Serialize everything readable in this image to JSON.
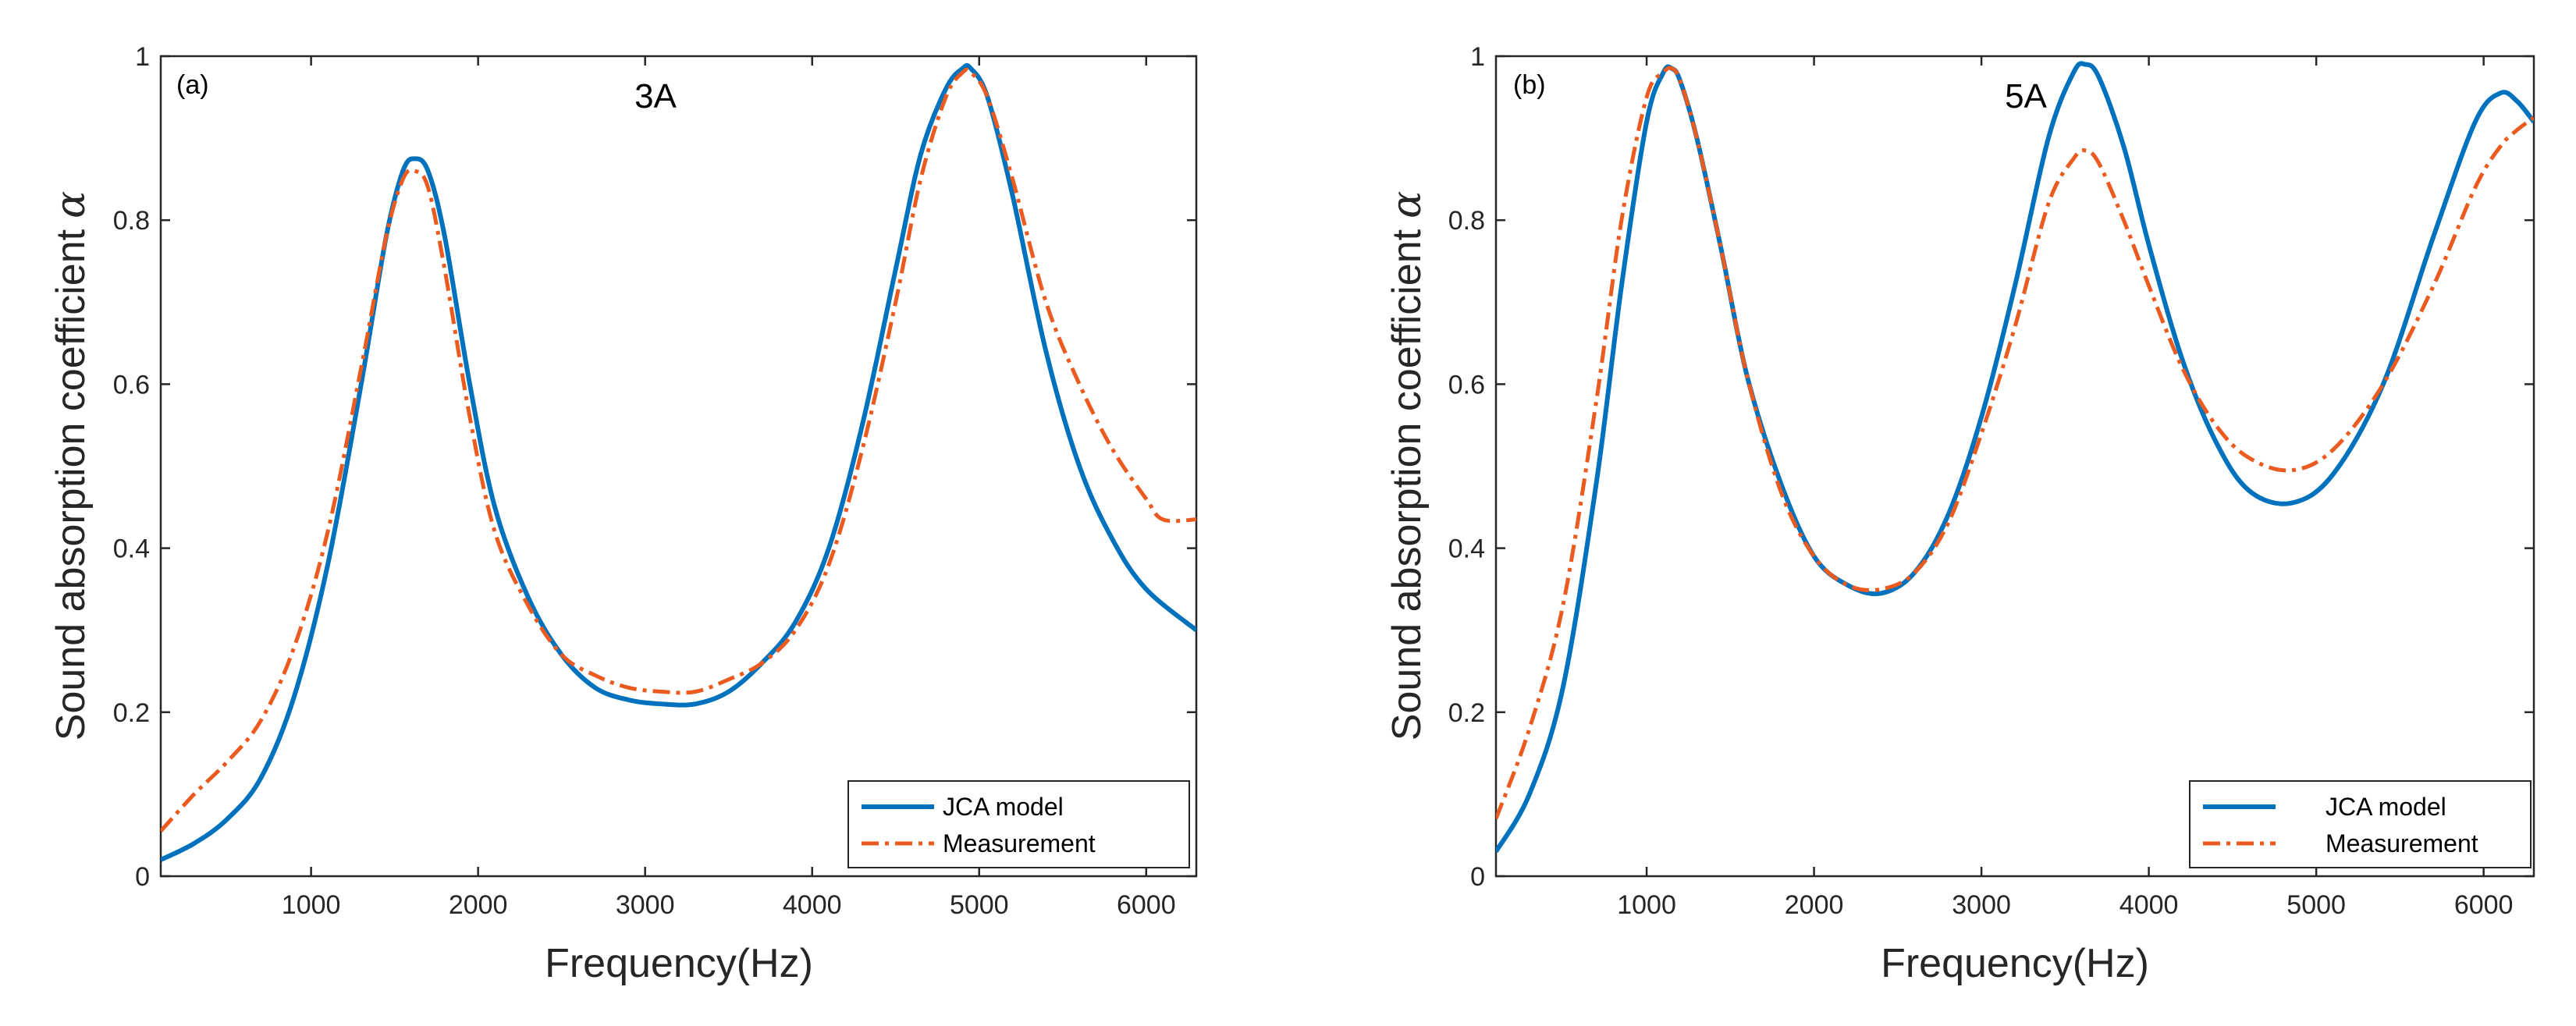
{
  "chart_data": [
    {
      "type": "line",
      "panel_label": "(a)",
      "title": "3A",
      "xlabel": "Frequency(Hz)",
      "ylabel": "Sound absorption coefficient",
      "ylabel_symbol": "α",
      "xlim": [
        100,
        6300
      ],
      "ylim": [
        0,
        1
      ],
      "xticks": [
        "1000",
        "2000",
        "3000",
        "4000",
        "5000",
        "6000"
      ],
      "yticks": [
        "0",
        "0.2",
        "0.4",
        "0.6",
        "0.8",
        "1"
      ],
      "legend_position": "bottom-right",
      "series": [
        {
          "name": "JCA model",
          "style": "solid",
          "color": "#0072BD",
          "x": [
            100,
            300,
            500,
            700,
            900,
            1100,
            1300,
            1450,
            1550,
            1620,
            1700,
            1800,
            1950,
            2100,
            2300,
            2500,
            2700,
            2900,
            3100,
            3300,
            3500,
            3700,
            3900,
            4100,
            4300,
            4500,
            4650,
            4800,
            4900,
            4950,
            5050,
            5200,
            5400,
            5600,
            5800,
            6000,
            6300
          ],
          "y": [
            0.02,
            0.04,
            0.07,
            0.12,
            0.22,
            0.38,
            0.6,
            0.78,
            0.86,
            0.875,
            0.86,
            0.78,
            0.6,
            0.45,
            0.34,
            0.27,
            0.23,
            0.215,
            0.21,
            0.21,
            0.225,
            0.26,
            0.31,
            0.4,
            0.55,
            0.74,
            0.88,
            0.96,
            0.985,
            0.985,
            0.95,
            0.83,
            0.64,
            0.5,
            0.41,
            0.35,
            0.3
          ]
        },
        {
          "name": "Measurement",
          "style": "dashdot",
          "color": "#EB5A1E",
          "x": [
            100,
            300,
            500,
            700,
            900,
            1100,
            1300,
            1450,
            1550,
            1620,
            1700,
            1800,
            1950,
            2100,
            2300,
            2500,
            2700,
            2900,
            3100,
            3300,
            3500,
            3700,
            3900,
            4100,
            4300,
            4500,
            4650,
            4800,
            4900,
            4950,
            5050,
            5200,
            5400,
            5600,
            5800,
            6000,
            6100,
            6300
          ],
          "y": [
            0.055,
            0.1,
            0.14,
            0.19,
            0.28,
            0.42,
            0.62,
            0.78,
            0.85,
            0.86,
            0.84,
            0.74,
            0.56,
            0.42,
            0.33,
            0.27,
            0.245,
            0.23,
            0.225,
            0.225,
            0.24,
            0.26,
            0.3,
            0.38,
            0.52,
            0.7,
            0.85,
            0.95,
            0.98,
            0.98,
            0.95,
            0.85,
            0.7,
            0.6,
            0.52,
            0.46,
            0.435,
            0.435
          ]
        }
      ]
    },
    {
      "type": "line",
      "panel_label": "(b)",
      "title": "5A",
      "xlabel": "Frequency(Hz)",
      "ylabel": "Sound absorption coefficient",
      "ylabel_symbol": "α",
      "xlim": [
        100,
        6300
      ],
      "ylim": [
        0,
        1
      ],
      "xticks": [
        "1000",
        "2000",
        "3000",
        "4000",
        "5000",
        "6000"
      ],
      "yticks": [
        "0",
        "0.2",
        "0.4",
        "0.6",
        "0.8",
        "1"
      ],
      "legend_position": "bottom-right",
      "series": [
        {
          "name": "JCA model",
          "style": "solid",
          "color": "#0072BD",
          "x": [
            100,
            300,
            500,
            700,
            850,
            1000,
            1100,
            1150,
            1200,
            1300,
            1450,
            1600,
            1800,
            2000,
            2200,
            2400,
            2600,
            2800,
            3000,
            3200,
            3400,
            3550,
            3620,
            3700,
            3850,
            4000,
            4200,
            4400,
            4600,
            4850,
            5100,
            5400,
            5700,
            5950,
            6100,
            6200,
            6300
          ],
          "y": [
            0.03,
            0.1,
            0.23,
            0.48,
            0.72,
            0.92,
            0.98,
            0.985,
            0.97,
            0.9,
            0.76,
            0.61,
            0.48,
            0.39,
            0.355,
            0.345,
            0.37,
            0.44,
            0.56,
            0.72,
            0.9,
            0.98,
            0.99,
            0.975,
            0.89,
            0.77,
            0.63,
            0.53,
            0.47,
            0.455,
            0.49,
            0.6,
            0.78,
            0.92,
            0.955,
            0.945,
            0.92
          ]
        },
        {
          "name": "Measurement",
          "style": "dashdot",
          "color": "#EB5A1E",
          "x": [
            100,
            300,
            500,
            700,
            850,
            1000,
            1100,
            1150,
            1200,
            1300,
            1450,
            1600,
            1800,
            2000,
            2200,
            2400,
            2600,
            2800,
            3000,
            3200,
            3400,
            3550,
            3620,
            3700,
            3850,
            4000,
            4200,
            4400,
            4600,
            4850,
            5100,
            5400,
            5700,
            5950,
            6100,
            6200,
            6300
          ],
          "y": [
            0.07,
            0.18,
            0.33,
            0.58,
            0.8,
            0.95,
            0.98,
            0.985,
            0.97,
            0.9,
            0.76,
            0.61,
            0.47,
            0.39,
            0.355,
            0.35,
            0.37,
            0.43,
            0.54,
            0.67,
            0.82,
            0.875,
            0.885,
            0.87,
            0.8,
            0.72,
            0.62,
            0.55,
            0.51,
            0.495,
            0.52,
            0.6,
            0.72,
            0.84,
            0.89,
            0.91,
            0.925
          ]
        }
      ]
    }
  ]
}
